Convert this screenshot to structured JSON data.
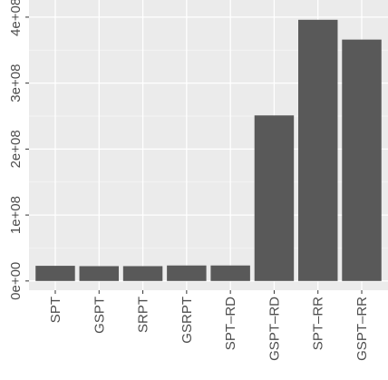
{
  "chart_data": {
    "type": "bar",
    "title": "",
    "xlabel": "",
    "ylabel": "",
    "categories": [
      "SPT",
      "GSPT",
      "SRPT",
      "GSRPT",
      "SPT–RD",
      "GSPT–RD",
      "SPT–RR",
      "GSPT–RR"
    ],
    "values": [
      23000000,
      22500000,
      22500000,
      23500000,
      23500000,
      251000000,
      396000000,
      366000000
    ],
    "ylim": [
      -14000000,
      426000000
    ],
    "yticks": [
      0,
      100000000,
      200000000,
      300000000,
      400000000
    ],
    "ytick_labels": [
      "0e+00",
      "1e+08",
      "2e+08",
      "3e+08",
      "4e+08"
    ],
    "grid": true,
    "legend": "none",
    "colors": {
      "panel": "#ebebeb",
      "grid_major": "#ffffff",
      "grid_minor": "#f7f7f7",
      "bar": "#595959",
      "tick": "#333333",
      "text": "#4d4d4d"
    }
  }
}
